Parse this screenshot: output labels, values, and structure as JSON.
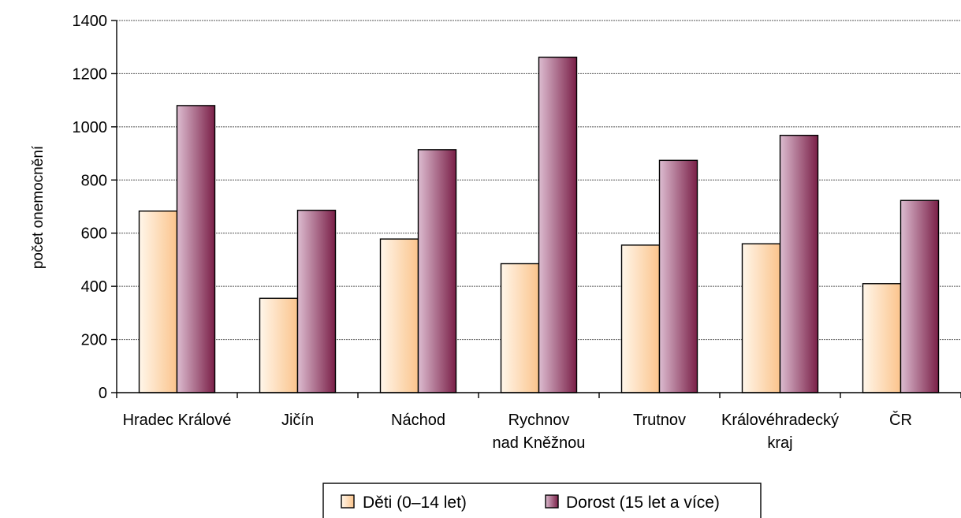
{
  "chart_data": {
    "type": "bar",
    "title": "",
    "xlabel": "",
    "ylabel": "počet onemocnění",
    "ylim": [
      0,
      1400
    ],
    "yticks": [
      0,
      200,
      400,
      600,
      800,
      1000,
      1200,
      1400
    ],
    "grid": true,
    "legend": "bottom",
    "categories": [
      [
        "Hradec Králové"
      ],
      [
        "Jičín"
      ],
      [
        "Náchod"
      ],
      [
        "Rychnov",
        "nad Kněžnou"
      ],
      [
        "Trutnov"
      ],
      [
        "Královéhradecký",
        "kraj"
      ],
      [
        "ČR"
      ]
    ],
    "series": [
      {
        "name": "Děti (0–14 let)",
        "values": [
          683,
          355,
          578,
          485,
          555,
          560,
          410
        ],
        "color_light": "#fff6ea",
        "color_dark": "#fbc48c"
      },
      {
        "name": "Dorost (15 let a více)",
        "values": [
          1080,
          686,
          914,
          1262,
          874,
          968,
          723
        ],
        "color_light": "#dcbcd0",
        "color_dark": "#7a1f47"
      }
    ]
  }
}
